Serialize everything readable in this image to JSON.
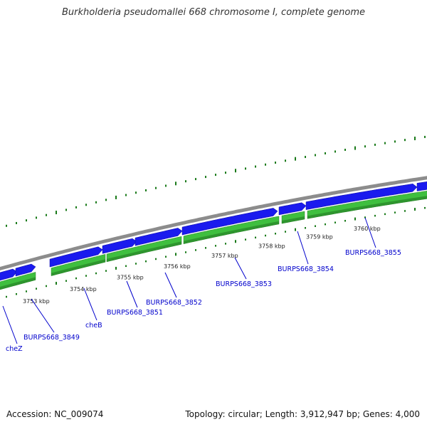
{
  "title": "Burkholderia pseudomallei 668 chromosome I, complete genome",
  "footer": {
    "accession": "Accession: NC_009074",
    "topology": "Topology: circular; Length: 3,912,947 bp; Genes: 4,000"
  },
  "colors": {
    "backbone": "#8c8c8c",
    "forward_cds": "#1a1aee",
    "reverse_cds": "#3fbf3f",
    "gene_label": "#0000cc",
    "gc_ticks": "#1a7a1a"
  },
  "ticks": [
    {
      "label": "3753 kbp"
    },
    {
      "label": "3754 kbp"
    },
    {
      "label": "3755 kbp"
    },
    {
      "label": "3756 kbp"
    },
    {
      "label": "3757 kbp"
    },
    {
      "label": "3758 kbp"
    },
    {
      "label": "3759 kbp"
    },
    {
      "label": "3760 kbp"
    }
  ],
  "genes": [
    {
      "name": "cheZ"
    },
    {
      "name": "BURPS668_3849"
    },
    {
      "name": "cheB"
    },
    {
      "name": "BURPS668_3851"
    },
    {
      "name": "BURPS668_3852"
    },
    {
      "name": "BURPS668_3853"
    },
    {
      "name": "BURPS668_3854"
    },
    {
      "name": "BURPS668_3855"
    }
  ]
}
